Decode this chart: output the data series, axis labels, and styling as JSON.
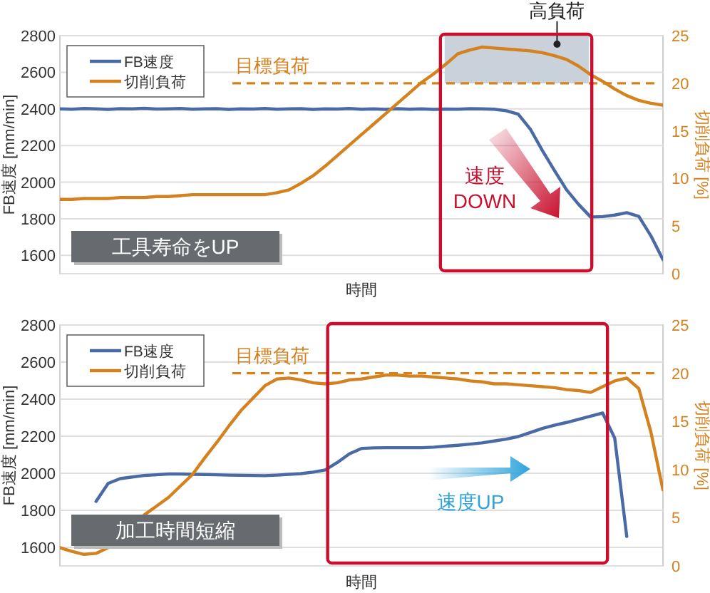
{
  "chart_data": [
    {
      "type": "line",
      "xlabel": "時間",
      "ylabel": "FB速度 [mm/min]",
      "y2label": "切削負荷 [%]",
      "categories": [
        null,
        null,
        null,
        null,
        null,
        null,
        null,
        null,
        null,
        null,
        null,
        null,
        null,
        null,
        null,
        null,
        null,
        null,
        null,
        null,
        null,
        null,
        null,
        null,
        null,
        null,
        null,
        null,
        null,
        null,
        null,
        null,
        null,
        null,
        null,
        null,
        null,
        null,
        null,
        null,
        null,
        null,
        null,
        null,
        null,
        null,
        null,
        null,
        null,
        null,
        null
      ],
      "ylim": [
        1500,
        2800
      ],
      "yticks": [
        {
          "value": 1500,
          "label": null
        },
        1600,
        1800,
        2000,
        2200,
        2400,
        2600,
        2800
      ],
      "y2lim": [
        0,
        25
      ],
      "y2ticks": [
        0,
        5,
        10,
        15,
        20,
        25
      ],
      "grid": "y",
      "legend": "top left",
      "series": [
        {
          "name": "FB速度",
          "color": "#4a6aa5",
          "values": [
            2400,
            2398,
            2402,
            2400,
            2397,
            2401,
            2400,
            2403,
            2399,
            2400,
            2402,
            2398,
            2400,
            2401,
            2397,
            2400,
            2399,
            2402,
            2398,
            2400,
            2401,
            2397,
            2400,
            2399,
            2402,
            2398,
            2400,
            2397,
            2401,
            2398,
            2400,
            2397,
            2399,
            2398,
            2401,
            2400,
            2398,
            2390,
            2371,
            2290,
            2173,
            2064,
            1959,
            1879,
            1810,
            1812,
            1820,
            1833,
            1813,
            1707,
            1577
          ]
        },
        {
          "name": "切削負荷",
          "color": "#d4821f",
          "axis": "y2",
          "values": [
            7.8,
            7.8,
            7.9,
            7.9,
            7.9,
            8.0,
            8.0,
            8.0,
            8.1,
            8.1,
            8.2,
            8.3,
            8.3,
            8.3,
            8.3,
            8.3,
            8.3,
            8.3,
            8.5,
            8.8,
            9.5,
            10.3,
            11.3,
            12.4,
            13.5,
            14.6,
            15.7,
            16.8,
            17.9,
            19.0,
            20.1,
            21.0,
            22.0,
            23.1,
            23.5,
            23.8,
            23.7,
            23.6,
            23.5,
            23.4,
            23.2,
            22.9,
            22.5,
            21.8,
            20.9,
            20.2,
            19.4,
            18.7,
            18.2,
            17.9,
            17.7
          ]
        }
      ],
      "ref_lines": [
        {
          "axis": "y2",
          "value": 20,
          "label": "目標負荷",
          "color": "#d4821f",
          "line_style": "dashed"
        }
      ],
      "bands": [
        {
          "axis": "y2",
          "from": 20,
          "to": 25,
          "label": "高負荷",
          "color": "#c9d2da"
        }
      ],
      "annotations": [
        "速度 DOWN",
        "工具寿命をUP"
      ]
    },
    {
      "type": "line",
      "xlabel": "時間",
      "ylabel": "FB速度 [mm/min]",
      "y2label": "切削負荷 [%]",
      "categories": [
        null,
        null,
        null,
        null,
        null,
        null,
        null,
        null,
        null,
        null,
        null,
        null,
        null,
        null,
        null,
        null,
        null,
        null,
        null,
        null,
        null,
        null,
        null,
        null,
        null,
        null,
        null,
        null,
        null,
        null,
        null,
        null,
        null,
        null,
        null,
        null,
        null,
        null,
        null,
        null,
        null,
        null,
        null,
        null,
        null,
        null,
        null,
        null,
        null,
        null,
        null
      ],
      "ylim": [
        1500,
        2800
      ],
      "yticks": [
        {
          "value": 1500,
          "label": null
        },
        1600,
        1800,
        2000,
        2200,
        2400,
        2600,
        2800
      ],
      "y2lim": [
        0,
        25
      ],
      "y2ticks": [
        0,
        5,
        10,
        15,
        20,
        25
      ],
      "grid": "y",
      "legend": "top left",
      "series": [
        {
          "name": "FB速度",
          "color": "#4a6aa5",
          "values": [
            null,
            null,
            null,
            1848,
            1945,
            1971,
            1980,
            1988,
            1992,
            1996,
            1996,
            1994,
            1993,
            1992,
            1990,
            1989,
            1988,
            1987,
            1990,
            1994,
            1998,
            2006,
            2018,
            2058,
            2105,
            2134,
            2137,
            2138,
            2138,
            2138,
            2138,
            2141,
            2146,
            2151,
            2157,
            2164,
            2174,
            2184,
            2198,
            2220,
            2242,
            2259,
            2274,
            2291,
            2308,
            2325,
            2190,
            1659,
            null,
            null,
            null
          ]
        },
        {
          "name": "切削負荷",
          "color": "#d4821f",
          "axis": "y2",
          "values": [
            1.9,
            1.5,
            1.2,
            1.3,
            1.9,
            null,
            null,
            5.3,
            6.2,
            7.1,
            8.3,
            9.5,
            11.2,
            12.8,
            14.5,
            16.1,
            17.4,
            18.7,
            19.4,
            19.5,
            19.3,
            19.0,
            18.9,
            19.0,
            19.3,
            19.4,
            19.6,
            19.8,
            19.8,
            19.7,
            19.7,
            19.6,
            19.5,
            19.4,
            19.2,
            19.1,
            18.9,
            18.9,
            18.8,
            18.7,
            18.6,
            18.5,
            18.3,
            18.2,
            18.0,
            18.6,
            19.2,
            19.5,
            18.4,
            13.9,
            7.9
          ]
        }
      ],
      "ref_lines": [
        {
          "axis": "y2",
          "value": 20,
          "label": "目標負荷",
          "color": "#d4821f",
          "line_style": "dashed"
        }
      ],
      "annotations": [
        "速度UP",
        "加工時間短縮"
      ]
    }
  ]
}
